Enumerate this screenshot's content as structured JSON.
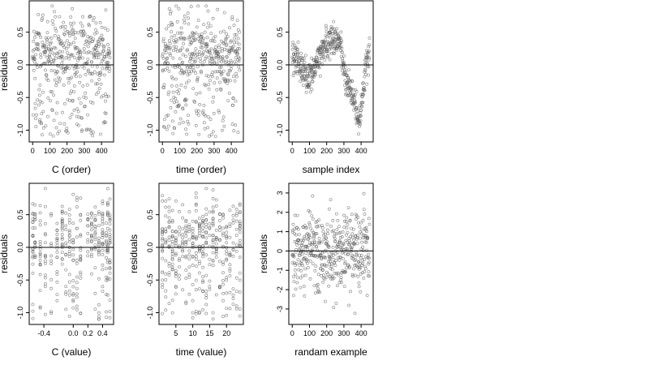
{
  "chart_data": [
    {
      "type": "scatter",
      "xlabel": "C (order)",
      "ylabel": "residuals",
      "xlim": [
        -20,
        470
      ],
      "ylim": [
        -1.18,
        0.98
      ],
      "xticks": [
        0,
        100,
        200,
        300,
        400
      ],
      "yticks": [
        -1.0,
        -0.5,
        0.0,
        0.5
      ],
      "ytick_labels": [
        "-1.0",
        "-0.5",
        "0.0",
        "0.5"
      ],
      "hline": 0,
      "pattern": "noise",
      "n_points": 450,
      "y_range": [
        -1.1,
        0.9
      ]
    },
    {
      "type": "scatter",
      "xlabel": "time (order)",
      "ylabel": "residuals",
      "xlim": [
        -20,
        470
      ],
      "ylim": [
        -1.18,
        0.98
      ],
      "xticks": [
        0,
        100,
        200,
        300,
        400
      ],
      "yticks": [
        -1.0,
        -0.5,
        0.0,
        0.5
      ],
      "ytick_labels": [
        "-1.0",
        "-0.5",
        "0.0",
        "0.5"
      ],
      "hline": 0,
      "pattern": "noise",
      "n_points": 450,
      "y_range": [
        -1.1,
        0.9
      ]
    },
    {
      "type": "scatter",
      "xlabel": "sample index",
      "ylabel": "residuals",
      "xlim": [
        -20,
        470
      ],
      "ylim": [
        -1.18,
        0.98
      ],
      "xticks": [
        0,
        100,
        200,
        300,
        400
      ],
      "yticks": [
        -1.0,
        -0.5,
        0.0,
        0.5
      ],
      "ytick_labels": [
        "-1.0",
        "-0.5",
        "0.0",
        "0.5"
      ],
      "hline": 0,
      "pattern": "trend",
      "n_points": 450,
      "trend_knots": [
        [
          0,
          0.2
        ],
        [
          40,
          0.05
        ],
        [
          90,
          -0.25
        ],
        [
          130,
          -0.05
        ],
        [
          180,
          0.25
        ],
        [
          240,
          0.45
        ],
        [
          280,
          0.3
        ],
        [
          310,
          -0.2
        ],
        [
          360,
          -0.55
        ],
        [
          390,
          -0.9
        ],
        [
          410,
          -0.5
        ],
        [
          430,
          0.1
        ],
        [
          460,
          0.2
        ]
      ]
    },
    {
      "type": "scatter",
      "xlabel": "C (value)",
      "ylabel": "residuals",
      "xlim": [
        -0.6,
        0.55
      ],
      "ylim": [
        -1.18,
        0.98
      ],
      "xticks": [
        -0.4,
        0.0,
        0.2,
        0.4
      ],
      "xtick_labels": [
        "-0.4",
        "0.0",
        "0.2",
        "0.4"
      ],
      "yticks": [
        -1.0,
        -0.5,
        0.0,
        0.5
      ],
      "ytick_labels": [
        "-1.0",
        "-0.5",
        "0.0",
        "0.5"
      ],
      "hline": 0,
      "pattern": "columns",
      "x_columns": [
        -0.55,
        -0.52,
        -0.45,
        -0.38,
        -0.3,
        -0.22,
        -0.15,
        -0.1,
        -0.05,
        0.0,
        0.05,
        0.1,
        0.2,
        0.25,
        0.3,
        0.35,
        0.4,
        0.45,
        0.47,
        0.5
      ],
      "y_range": [
        -1.1,
        0.9
      ]
    },
    {
      "type": "scatter",
      "xlabel": "time (value)",
      "ylabel": "residuals",
      "xlim": [
        0,
        25
      ],
      "ylim": [
        -1.18,
        0.98
      ],
      "xticks": [
        5,
        10,
        15,
        20
      ],
      "yticks": [
        -1.0,
        -0.5,
        0.0,
        0.5
      ],
      "ytick_labels": [
        "-1.0",
        "-0.5",
        "0.0",
        "0.5"
      ],
      "hline": 0,
      "pattern": "columns",
      "x_columns": [
        1,
        2,
        3,
        4,
        5,
        6,
        7,
        8,
        9,
        10,
        11,
        12,
        13,
        14,
        15,
        16,
        17,
        18,
        19,
        20,
        21,
        22,
        23,
        24
      ],
      "y_range": [
        -1.1,
        0.9
      ]
    },
    {
      "type": "scatter",
      "xlabel": "randam example",
      "ylabel": "residuals",
      "xlim": [
        -20,
        470
      ],
      "ylim": [
        -3.8,
        3.5
      ],
      "xticks": [
        0,
        100,
        200,
        300,
        400
      ],
      "yticks": [
        -3,
        -2,
        -1,
        0,
        1,
        2,
        3
      ],
      "hline": 0,
      "pattern": "gaussian",
      "n_points": 450,
      "sd": 1.0
    }
  ]
}
